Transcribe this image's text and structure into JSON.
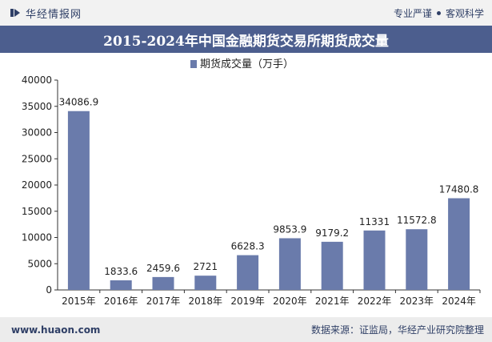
{
  "header": {
    "brand": "华经情报网",
    "tagline_left": "专业严谨",
    "tagline_right": "客观科学"
  },
  "title": "2015-2024年中国金融期货交易所期货成交量",
  "footer": {
    "url": "www.huaon.com",
    "source": "数据来源：证监局，华经产业研究院整理"
  },
  "colors": {
    "bar": "#6a7bab",
    "header": "#4c5e8e",
    "text": "#2f3f66"
  },
  "chart_data": {
    "type": "bar",
    "categories": [
      "2015年",
      "2016年",
      "2017年",
      "2018年",
      "2019年",
      "2020年",
      "2021年",
      "2022年",
      "2023年",
      "2024年"
    ],
    "series": [
      {
        "name": "期货成交量（万手）",
        "values": [
          34086.9,
          1833.6,
          2459.6,
          2721,
          6628.3,
          9853.9,
          9179.2,
          11331,
          11572.8,
          17480.8
        ]
      }
    ],
    "data_labels": [
      "34086.9",
      "1833.6",
      "2459.6",
      "2721",
      "6628.3",
      "9853.9",
      "9179.2",
      "11331",
      "11572.8",
      "17480.8"
    ],
    "y_ticks": [
      "0",
      "5000",
      "10000",
      "15000",
      "20000",
      "25000",
      "30000",
      "35000",
      "40000"
    ],
    "ylim": [
      0,
      40000
    ],
    "legend_position": "top-center",
    "grid": false
  }
}
